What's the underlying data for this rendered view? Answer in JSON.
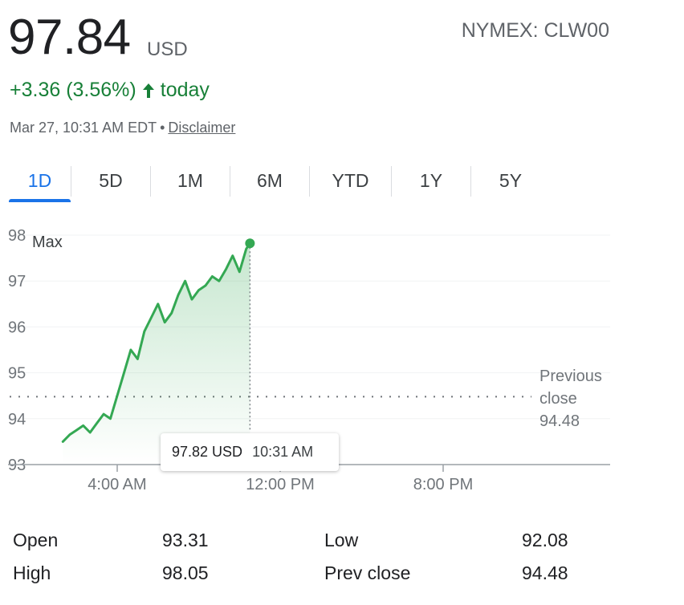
{
  "quote": {
    "price": "97.84",
    "currency": "USD",
    "ticker": "NYMEX: CLW00",
    "change": "+3.36 (3.56%)",
    "change_suffix": "today",
    "timestamp": "Mar 27, 10:31 AM EDT",
    "separator": "•",
    "disclaimer": "Disclaimer"
  },
  "tabs": [
    {
      "label": "1D",
      "active": true
    },
    {
      "label": "5D",
      "active": false
    },
    {
      "label": "1M",
      "active": false
    },
    {
      "label": "6M",
      "active": false
    },
    {
      "label": "YTD",
      "active": false
    },
    {
      "label": "1Y",
      "active": false
    },
    {
      "label": "5Y",
      "active": false
    }
  ],
  "tooltip": {
    "price": "97.82 USD",
    "time": "10:31 AM"
  },
  "colors": {
    "up": "#188038",
    "accent": "#1a73e8",
    "line": "#34a853"
  },
  "icons": {
    "change_arrow": "arrow-up-icon"
  },
  "chart_data": {
    "type": "line",
    "y_ticks": [
      "93",
      "94",
      "95",
      "96",
      "97",
      "98"
    ],
    "ylim": [
      93,
      98
    ],
    "x_ticks": [
      "4:00 AM",
      "12:00 PM",
      "8:00 PM"
    ],
    "max_label": "Max",
    "reference_line": {
      "label_lines": [
        "Previous",
        "close",
        "94.48"
      ],
      "value": 94.48
    },
    "series": [
      {
        "x": [
          "1:20 AM",
          "1:40 AM",
          "2:00 AM",
          "2:20 AM",
          "2:40 AM",
          "3:00 AM",
          "3:20 AM",
          "3:40 AM",
          "4:00 AM",
          "4:20 AM",
          "4:40 AM",
          "5:00 AM",
          "5:20 AM",
          "5:40 AM",
          "6:00 AM",
          "6:20 AM",
          "6:40 AM",
          "7:00 AM",
          "7:20 AM",
          "7:40 AM",
          "8:00 AM",
          "8:20 AM",
          "8:40 AM",
          "9:00 AM",
          "9:20 AM",
          "9:40 AM",
          "10:00 AM",
          "10:20 AM",
          "10:31 AM"
        ],
        "values": [
          93.5,
          93.65,
          93.75,
          93.85,
          93.7,
          93.9,
          94.1,
          94.0,
          94.5,
          95.0,
          95.5,
          95.3,
          95.9,
          96.2,
          96.5,
          96.1,
          96.3,
          96.7,
          97.0,
          96.6,
          96.8,
          96.9,
          97.1,
          97.0,
          97.25,
          97.55,
          97.2,
          97.7,
          97.82
        ]
      }
    ]
  },
  "stats": [
    {
      "label": "Open",
      "value": "93.31"
    },
    {
      "label": "High",
      "value": "98.05"
    },
    {
      "label": "Low",
      "value": "92.08"
    },
    {
      "label": "Prev close",
      "value": "94.48"
    }
  ]
}
